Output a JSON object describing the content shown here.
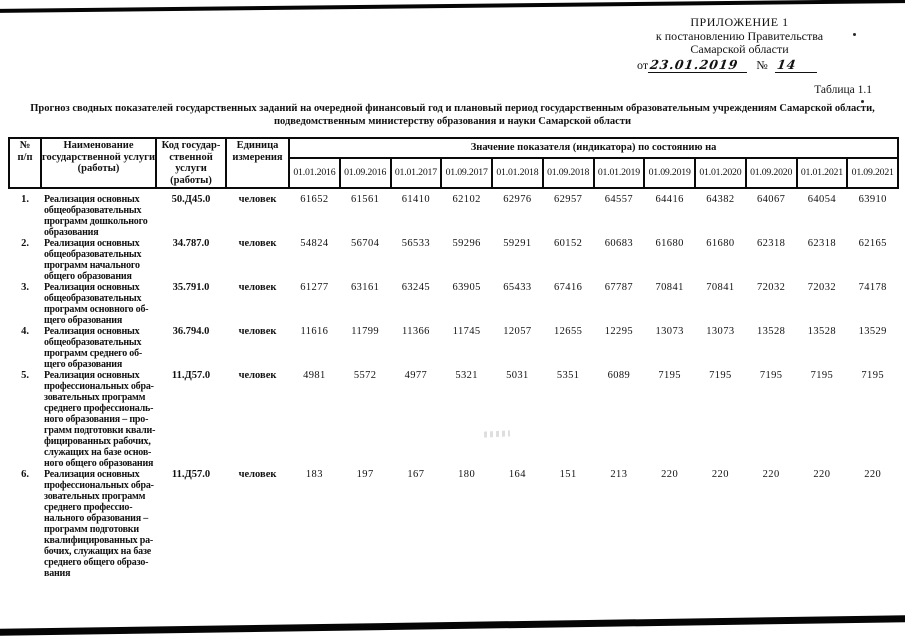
{
  "colors": {
    "paper": "#ffffff",
    "ink": "#121212"
  },
  "appendix": {
    "line1": "ПРИЛОЖЕНИЕ 1",
    "line2": "к постановлению Правительства",
    "line3": "Самарской области",
    "from_label": "от",
    "date_handwritten": "23.01.2019",
    "number_sign": "№",
    "number_handwritten": "14"
  },
  "table_label": "Таблица 1.1",
  "title_line1": "Прогноз сводных показателей государственных заданий на очередной финансовый год и плановый период государственным образовательным учреждениям Самарской области,",
  "title_line2": "подведомственным министерству образования и науки Самарской области",
  "table": {
    "headers": {
      "num": "№\nп/п",
      "name": "Наименование\nгосударственной услуги\n(работы)",
      "code": "Код государ-\nственной\nуслуги\n(работы)",
      "unit": "Единица\nизмерения",
      "values_group": "Значение показателя (индикатора) по состоянию на",
      "dates": [
        "01.01.2016",
        "01.09.2016",
        "01.01.2017",
        "01.09.2017",
        "01.01.2018",
        "01.09.2018",
        "01.01.2019",
        "01.09.2019",
        "01.01.2020",
        "01.09.2020",
        "01.01.2021",
        "01.09.2021"
      ]
    },
    "rows": [
      {
        "num": "1.",
        "name": "Реализация основных\nобщеобразовательных\nпрограмм дошкольного\nобразования",
        "code": "50.Д45.0",
        "unit": "человек",
        "values": [
          61652,
          61561,
          61410,
          62102,
          62976,
          62957,
          64557,
          64416,
          64382,
          64067,
          64054,
          63910
        ]
      },
      {
        "num": "2.",
        "name": "Реализация основных\nобщеобразовательных\nпрограмм начального\nобщего образования",
        "code": "34.787.0",
        "unit": "человек",
        "values": [
          54824,
          56704,
          56533,
          59296,
          59291,
          60152,
          60683,
          61680,
          61680,
          62318,
          62318,
          62165
        ]
      },
      {
        "num": "3.",
        "name": "Реализация основных\nобщеобразовательных\nпрограмм основного об-\nщего образования",
        "code": "35.791.0",
        "unit": "человек",
        "values": [
          61277,
          63161,
          63245,
          63905,
          65433,
          67416,
          67787,
          70841,
          70841,
          72032,
          72032,
          74178
        ]
      },
      {
        "num": "4.",
        "name": "Реализация основных\nобщеобразовательных\nпрограмм среднего об-\nщего образования",
        "code": "36.794.0",
        "unit": "человек",
        "values": [
          11616,
          11799,
          11366,
          11745,
          12057,
          12655,
          12295,
          13073,
          13073,
          13528,
          13528,
          13529
        ]
      },
      {
        "num": "5.",
        "name": "Реализация основных\nпрофессиональных обра-\nзовательных программ\nсреднего профессиональ-\nного образования – про-\nграмм подготовки квали-\nфицированных рабочих,\nслужащих на базе основ-\nного общего образования",
        "code": "11.Д57.0",
        "unit": "человек",
        "values": [
          4981,
          5572,
          4977,
          5321,
          5031,
          5351,
          6089,
          7195,
          7195,
          7195,
          7195,
          7195
        ]
      },
      {
        "num": "6.",
        "name": "Реализация основных\nпрофессиональных обра-\nзовательных программ\nсреднего профессио-\nнального образования –\nпрограмм подготовки\nквалифицированных ра-\nбочих, служащих на базе\nсреднего общего образо-\nвания",
        "code": "11.Д57.0",
        "unit": "человек",
        "values": [
          183,
          197,
          167,
          180,
          164,
          151,
          213,
          220,
          220,
          220,
          220,
          220
        ]
      }
    ]
  }
}
